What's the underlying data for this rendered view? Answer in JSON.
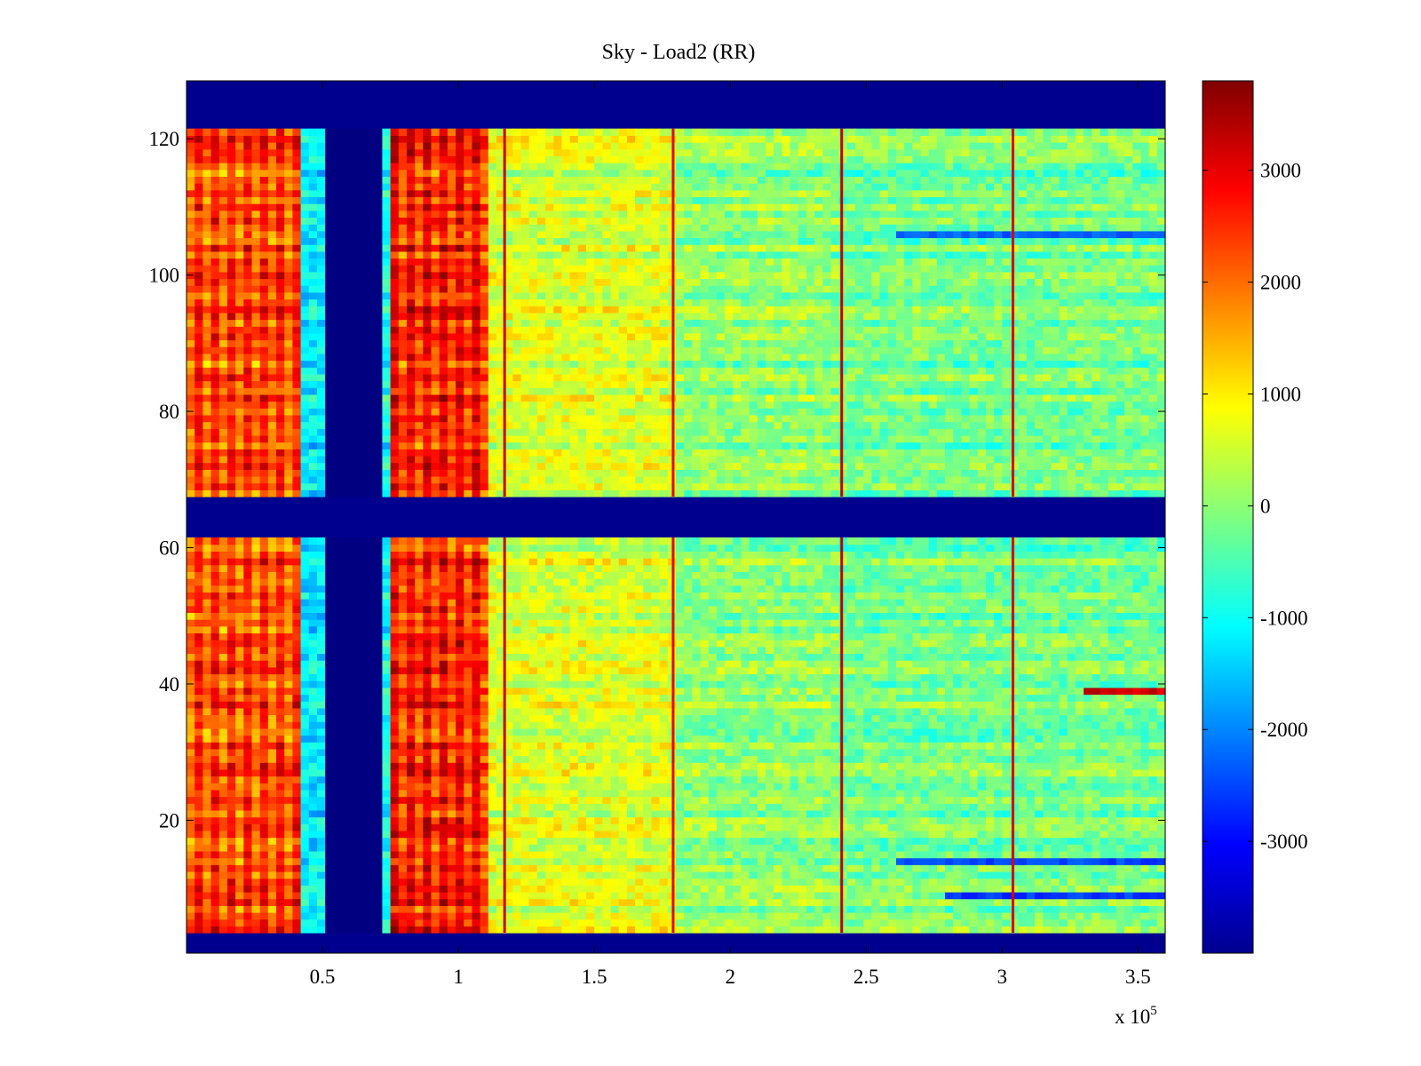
{
  "chart_data": {
    "type": "heatmap",
    "title": "Sky - Load2 (RR)",
    "xlabel": "",
    "ylabel": "",
    "x_multiplier_label": "x 10",
    "x_multiplier_exponent": "5",
    "xlim": [
      0,
      3.6
    ],
    "ylim": [
      0.5,
      128.5
    ],
    "x_ticks": [
      0.5,
      1,
      1.5,
      2,
      2.5,
      3,
      3.5
    ],
    "x_tick_labels": [
      "0.5",
      "1",
      "1.5",
      "2",
      "2.5",
      "3",
      "3.5"
    ],
    "y_ticks": [
      20,
      40,
      60,
      80,
      100,
      120
    ],
    "y_tick_labels": [
      "20",
      "40",
      "60",
      "80",
      "100",
      "120"
    ],
    "colormap": "jet",
    "clim": [
      -4000,
      3800
    ],
    "colorbar_ticks": [
      3000,
      2000,
      1000,
      0,
      -1000,
      -2000,
      -3000
    ],
    "colorbar_tick_labels": [
      "3000",
      "2000",
      "1000",
      "0",
      "-1000",
      "-2000",
      "-3000"
    ],
    "masked_value": -4000,
    "masked_rows": [
      [
        1,
        3
      ],
      [
        62,
        67
      ],
      [
        122,
        128
      ]
    ],
    "data_rows_ranges": [
      [
        4,
        61
      ],
      [
        68,
        121
      ]
    ],
    "x_regions": [
      {
        "name": "strong-positive-striped",
        "x_start": 0.0,
        "x_end": 0.43,
        "mean_value": 2600
      },
      {
        "name": "transition-cyan",
        "x_start": 0.43,
        "x_end": 0.5,
        "mean_value": -1200
      },
      {
        "name": "masked-gap",
        "x_start": 0.5,
        "x_end": 0.73,
        "mean_value": -4000
      },
      {
        "name": "transition-cyan",
        "x_start": 0.73,
        "x_end": 0.76,
        "mean_value": -1000
      },
      {
        "name": "strong-positive-striped",
        "x_start": 0.76,
        "x_end": 1.12,
        "mean_value": 2900
      },
      {
        "name": "moderate-positive",
        "x_start": 1.12,
        "x_end": 1.8,
        "mean_value": 600
      },
      {
        "name": "near-zero",
        "x_start": 1.8,
        "x_end": 2.4,
        "mean_value": 0
      },
      {
        "name": "mixed-negative-positive",
        "x_start": 2.4,
        "x_end": 3.6,
        "mean_value": -200
      }
    ],
    "vertical_spikes": [
      {
        "x": 1.17,
        "value": 3200
      },
      {
        "x": 1.79,
        "value": 3000
      },
      {
        "x": 2.41,
        "value": 3300
      },
      {
        "x": 3.04,
        "value": 3100
      }
    ],
    "notable_rows": [
      {
        "row": 39,
        "x_start": 3.3,
        "x_end": 3.6,
        "value": 3200
      },
      {
        "row": 9,
        "x_start": 2.8,
        "x_end": 3.6,
        "value": -2600
      },
      {
        "row": 14,
        "x_start": 2.6,
        "x_end": 3.6,
        "value": -2500
      },
      {
        "row": 106,
        "x_start": 2.6,
        "x_end": 3.6,
        "value": -2300
      }
    ]
  }
}
